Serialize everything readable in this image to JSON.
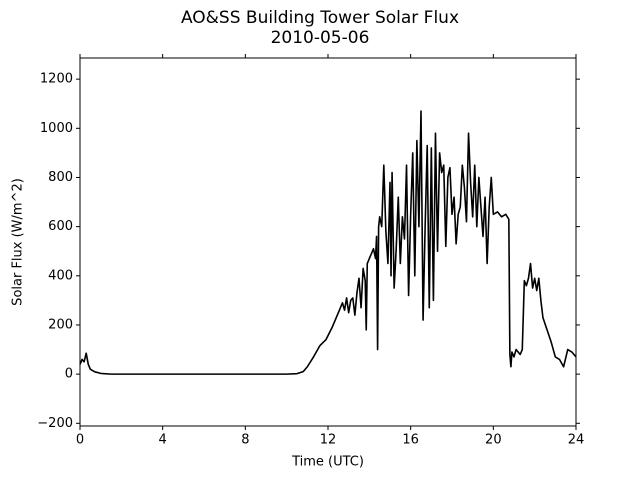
{
  "chart_data": {
    "type": "line",
    "title": "AO&SS Building Tower Solar Flux",
    "subtitle": "2010-05-06",
    "x_label": "Time (UTC)",
    "y_label": "Solar Flux (W/m^2)",
    "xlim": [
      0,
      24
    ],
    "xticks": [
      0,
      4,
      8,
      12,
      16,
      20,
      24
    ],
    "ylim": [
      -211,
      1286
    ],
    "yticks": [
      {
        "value": -200,
        "label": "−200"
      },
      0,
      200,
      400,
      600,
      800,
      1000,
      1200
    ],
    "series": [
      {
        "color": "#000000",
        "x": [
          0,
          0.1,
          0.2,
          0.3,
          0.4,
          0.5,
          0.7,
          1,
          1.5,
          2,
          4,
          6,
          8,
          10,
          10.5,
          10.8,
          11,
          11.3,
          11.6,
          11.9,
          12.2,
          12.5,
          12.7,
          12.8,
          12.9,
          13.0,
          13.1,
          13.2,
          13.3,
          13.4,
          13.5,
          13.6,
          13.7,
          13.8,
          13.85,
          13.9,
          14.0,
          14.2,
          14.3,
          14.35,
          14.4,
          14.45,
          14.5,
          14.6,
          14.7,
          14.8,
          14.9,
          15.0,
          15.05,
          15.1,
          15.2,
          15.3,
          15.4,
          15.5,
          15.6,
          15.7,
          15.8,
          15.9,
          16.0,
          16.1,
          16.2,
          16.3,
          16.4,
          16.5,
          16.6,
          16.7,
          16.8,
          16.9,
          17.0,
          17.1,
          17.2,
          17.3,
          17.4,
          17.5,
          17.6,
          17.7,
          17.8,
          17.9,
          18.0,
          18.1,
          18.2,
          18.3,
          18.4,
          18.5,
          18.6,
          18.7,
          18.8,
          18.9,
          19.0,
          19.1,
          19.2,
          19.3,
          19.4,
          19.5,
          19.6,
          19.7,
          19.8,
          19.9,
          20.0,
          20.2,
          20.4,
          20.6,
          20.75,
          20.8,
          20.85,
          20.9,
          21.0,
          21.1,
          21.3,
          21.4,
          21.5,
          21.6,
          21.7,
          21.8,
          21.9,
          22.0,
          22.1,
          22.2,
          22.3,
          22.4,
          22.6,
          22.8,
          23.0,
          23.2,
          23.4,
          23.6,
          23.8,
          24.0
        ],
        "values": [
          40,
          60,
          50,
          85,
          40,
          20,
          10,
          3,
          0,
          0,
          0,
          0,
          0,
          0,
          2,
          10,
          30,
          70,
          115,
          140,
          190,
          250,
          290,
          260,
          310,
          250,
          300,
          310,
          240,
          330,
          390,
          270,
          430,
          380,
          180,
          450,
          470,
          510,
          470,
          560,
          100,
          600,
          640,
          600,
          850,
          580,
          450,
          780,
          400,
          820,
          350,
          510,
          720,
          450,
          640,
          550,
          850,
          320,
          650,
          900,
          400,
          950,
          600,
          1070,
          220,
          600,
          930,
          270,
          920,
          300,
          980,
          500,
          900,
          820,
          850,
          520,
          800,
          840,
          650,
          720,
          530,
          650,
          680,
          850,
          760,
          620,
          980,
          780,
          640,
          850,
          600,
          800,
          680,
          560,
          720,
          450,
          680,
          800,
          650,
          660,
          640,
          650,
          630,
          80,
          30,
          90,
          70,
          100,
          80,
          100,
          380,
          360,
          390,
          450,
          350,
          390,
          340,
          390,
          300,
          230,
          180,
          130,
          70,
          60,
          30,
          100,
          90,
          70
        ]
      }
    ]
  }
}
